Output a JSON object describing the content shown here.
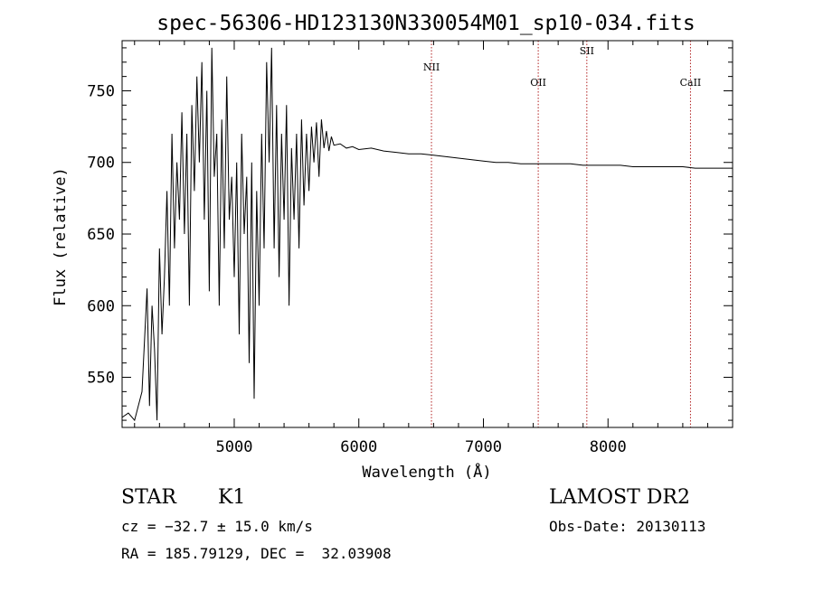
{
  "chart_data": {
    "type": "line",
    "title": "spec-56306-HD123130N330054M01_sp10-034.fits",
    "xlabel": "Wavelength (Å)",
    "ylabel": "Flux (relative)",
    "xlim": [
      4100,
      9000
    ],
    "ylim": [
      515,
      785
    ],
    "x_ticks": [
      5000,
      6000,
      7000,
      8000
    ],
    "y_ticks": [
      550,
      600,
      650,
      700,
      750
    ],
    "grid": false,
    "legend": "none",
    "line_color": "#000000",
    "marker_color": "#b22222",
    "spectral_lines": [
      {
        "name": "NII",
        "wavelength": 6583
      },
      {
        "name": "OII",
        "wavelength": 7440
      },
      {
        "name": "SII",
        "wavelength": 7830
      },
      {
        "name": "CaII",
        "wavelength": 8662
      }
    ],
    "series": [
      {
        "x": [
          4100,
          4150,
          4200,
          4260,
          4300,
          4320,
          4340,
          4360,
          4380,
          4400,
          4420,
          4440,
          4460,
          4480,
          4500,
          4520,
          4540,
          4560,
          4580,
          4600,
          4620,
          4640,
          4660,
          4680,
          4700,
          4720,
          4740,
          4760,
          4780,
          4800,
          4820,
          4840,
          4860,
          4880,
          4900,
          4920,
          4940,
          4960,
          4980,
          5000,
          5020,
          5040,
          5060,
          5080,
          5100,
          5120,
          5140,
          5160,
          5180,
          5200,
          5220,
          5240,
          5260,
          5280,
          5300,
          5320,
          5340,
          5360,
          5380,
          5400,
          5420,
          5440,
          5460,
          5480,
          5500,
          5520,
          5540,
          5560,
          5580,
          5600,
          5620,
          5640,
          5660,
          5680,
          5700,
          5720,
          5740,
          5760,
          5780,
          5800,
          5850,
          5900,
          5950,
          6000,
          6100,
          6200,
          6300,
          6400,
          6500,
          6600,
          6700,
          6800,
          6900,
          7000,
          7100,
          7200,
          7300,
          7400,
          7500,
          7600,
          7700,
          7800,
          7900,
          8000,
          8100,
          8200,
          8300,
          8400,
          8500,
          8600,
          8700,
          8800,
          8900,
          9000
        ],
        "y": [
          522,
          525,
          520,
          540,
          612,
          530,
          600,
          570,
          520,
          640,
          580,
          620,
          680,
          600,
          720,
          640,
          700,
          660,
          735,
          650,
          720,
          600,
          740,
          680,
          760,
          700,
          770,
          660,
          750,
          610,
          780,
          690,
          720,
          600,
          730,
          640,
          760,
          660,
          690,
          620,
          700,
          580,
          720,
          650,
          690,
          560,
          700,
          535,
          680,
          600,
          720,
          640,
          770,
          700,
          780,
          640,
          740,
          620,
          720,
          660,
          740,
          600,
          710,
          660,
          720,
          640,
          730,
          670,
          720,
          680,
          725,
          700,
          728,
          690,
          730,
          710,
          722,
          708,
          718,
          712,
          713,
          710,
          711,
          709,
          710,
          708,
          707,
          706,
          706,
          705,
          704,
          703,
          702,
          701,
          700,
          700,
          699,
          699,
          699,
          699,
          699,
          698,
          698,
          698,
          698,
          697,
          697,
          697,
          697,
          697,
          696,
          696,
          696,
          696
        ]
      }
    ]
  },
  "info": {
    "object_class": "STAR",
    "subclass": "K1",
    "survey": "LAMOST DR2",
    "redshift": "cz = −32.7 ± 15.0 km/s",
    "obs_date": "Obs-Date: 20130113",
    "coords": "RA = 185.79129, DEC =  32.03908"
  }
}
